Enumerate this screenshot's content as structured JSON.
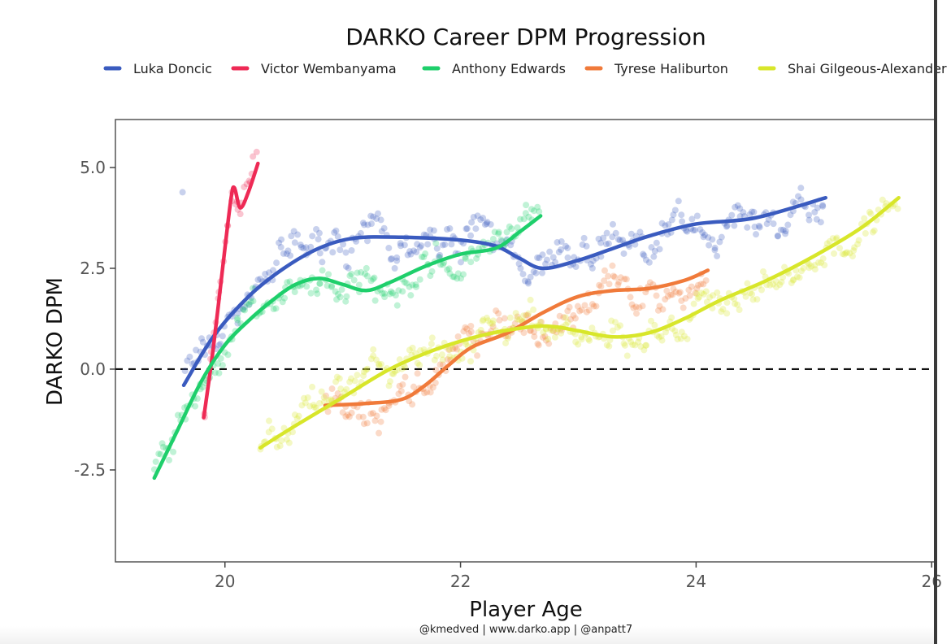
{
  "chart_data": {
    "type": "line",
    "title": "DARKO Career DPM Progression",
    "xlabel": "Player Age",
    "ylabel": "DARKO DPM",
    "caption": "@kmedved | www.darko.app | @anpatt7",
    "xlim": [
      19.07,
      26.04
    ],
    "ylim": [
      -4.78,
      6.19
    ],
    "xticks": [
      20,
      22,
      24,
      26
    ],
    "xtick_labels": [
      "20",
      "22",
      "24",
      "26"
    ],
    "yticks": [
      5.0,
      2.5,
      0.0,
      -2.5
    ],
    "ytick_labels": [
      "5.0",
      "2.5",
      "0.0",
      "-2.5"
    ],
    "reference_line": {
      "y": 0,
      "style": "dashed"
    },
    "grid": false,
    "legend_position": "top",
    "series": [
      {
        "name": "Luka Doncic",
        "color": "#3a5bbf",
        "smooth": [
          [
            19.65,
            -0.4
          ],
          [
            19.9,
            0.8
          ],
          [
            20.2,
            1.8
          ],
          [
            20.5,
            2.5
          ],
          [
            20.8,
            3.0
          ],
          [
            21.1,
            3.25
          ],
          [
            21.5,
            3.27
          ],
          [
            22.0,
            3.2
          ],
          [
            22.3,
            3.05
          ],
          [
            22.5,
            2.75
          ],
          [
            22.7,
            2.5
          ],
          [
            23.0,
            2.7
          ],
          [
            23.3,
            3.0
          ],
          [
            23.6,
            3.3
          ],
          [
            24.0,
            3.6
          ],
          [
            24.5,
            3.75
          ],
          [
            25.1,
            4.25
          ]
        ]
      },
      {
        "name": "Victor Wembanyama",
        "color": "#ee2a55",
        "smooth": [
          [
            19.82,
            -1.2
          ],
          [
            19.9,
            0.5
          ],
          [
            19.98,
            2.5
          ],
          [
            20.05,
            4.2
          ],
          [
            20.08,
            4.5
          ],
          [
            20.13,
            4.0
          ],
          [
            20.2,
            4.4
          ],
          [
            20.28,
            5.1
          ]
        ]
      },
      {
        "name": "Anthony Edwards",
        "color": "#1ecf6b",
        "smooth": [
          [
            19.4,
            -2.7
          ],
          [
            19.6,
            -1.5
          ],
          [
            19.8,
            -0.3
          ],
          [
            20.0,
            0.6
          ],
          [
            20.2,
            1.2
          ],
          [
            20.4,
            1.7
          ],
          [
            20.6,
            2.1
          ],
          [
            20.8,
            2.25
          ],
          [
            21.0,
            2.1
          ],
          [
            21.2,
            1.95
          ],
          [
            21.4,
            2.15
          ],
          [
            21.7,
            2.55
          ],
          [
            22.0,
            2.85
          ],
          [
            22.3,
            3.0
          ],
          [
            22.5,
            3.4
          ],
          [
            22.68,
            3.8
          ]
        ]
      },
      {
        "name": "Tyrese Haliburton",
        "color": "#f07a3a",
        "smooth": [
          [
            20.85,
            -0.9
          ],
          [
            21.2,
            -0.85
          ],
          [
            21.5,
            -0.75
          ],
          [
            21.7,
            -0.4
          ],
          [
            21.9,
            0.1
          ],
          [
            22.1,
            0.55
          ],
          [
            22.4,
            0.9
          ],
          [
            22.7,
            1.4
          ],
          [
            23.0,
            1.8
          ],
          [
            23.3,
            1.95
          ],
          [
            23.6,
            2.0
          ],
          [
            23.9,
            2.2
          ],
          [
            24.1,
            2.45
          ]
        ]
      },
      {
        "name": "Shai Gilgeous-Alexander",
        "color": "#d8e62a",
        "smooth": [
          [
            20.3,
            -1.95
          ],
          [
            20.6,
            -1.4
          ],
          [
            21.0,
            -0.7
          ],
          [
            21.4,
            0.0
          ],
          [
            21.8,
            0.5
          ],
          [
            22.2,
            0.85
          ],
          [
            22.6,
            1.05
          ],
          [
            22.8,
            1.05
          ],
          [
            23.0,
            0.95
          ],
          [
            23.3,
            0.8
          ],
          [
            23.6,
            0.9
          ],
          [
            23.9,
            1.25
          ],
          [
            24.2,
            1.7
          ],
          [
            24.6,
            2.2
          ],
          [
            25.0,
            2.8
          ],
          [
            25.4,
            3.5
          ],
          [
            25.72,
            4.25
          ]
        ]
      }
    ]
  }
}
